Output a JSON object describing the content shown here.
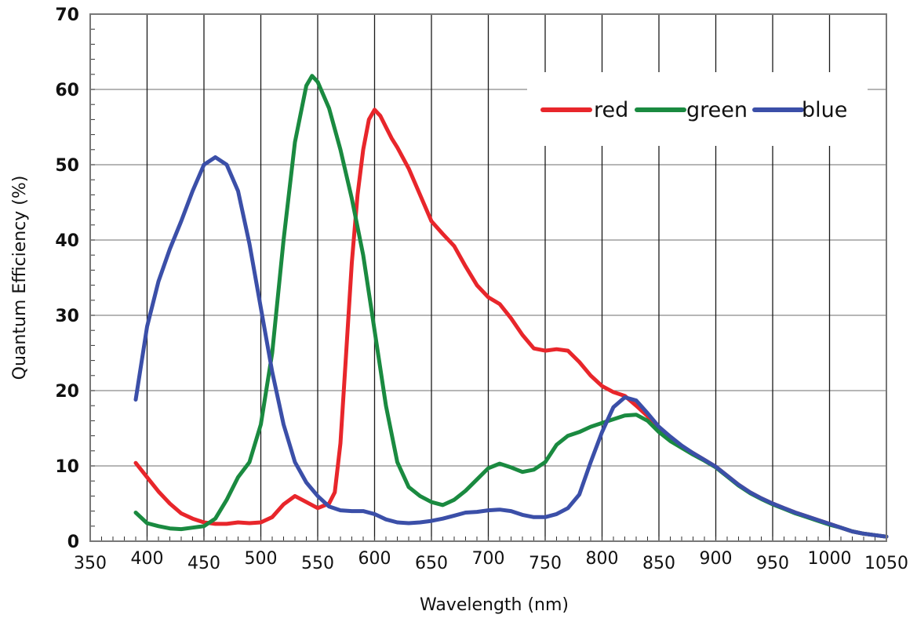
{
  "chart_data": {
    "type": "line",
    "title": "",
    "xlabel": "Wavelength (nm)",
    "ylabel": "Quantum Efficiency (%)",
    "xlim": [
      350,
      1050
    ],
    "ylim": [
      0,
      70
    ],
    "x_ticks": [
      350,
      400,
      450,
      500,
      550,
      600,
      650,
      700,
      750,
      800,
      850,
      900,
      950,
      1000,
      1050
    ],
    "y_ticks": [
      0,
      10,
      20,
      30,
      40,
      50,
      60,
      70
    ],
    "grid": true,
    "legend_position": "top-right",
    "series": [
      {
        "name": "red",
        "color": "#e8262b",
        "points": [
          [
            390,
            10.4
          ],
          [
            400,
            8.5
          ],
          [
            410,
            6.6
          ],
          [
            420,
            5.0
          ],
          [
            430,
            3.7
          ],
          [
            440,
            3.0
          ],
          [
            450,
            2.5
          ],
          [
            460,
            2.3
          ],
          [
            470,
            2.3
          ],
          [
            480,
            2.5
          ],
          [
            490,
            2.4
          ],
          [
            500,
            2.5
          ],
          [
            510,
            3.2
          ],
          [
            520,
            4.9
          ],
          [
            530,
            6.0
          ],
          [
            540,
            5.2
          ],
          [
            550,
            4.4
          ],
          [
            560,
            5.0
          ],
          [
            565,
            6.5
          ],
          [
            570,
            13.0
          ],
          [
            575,
            25.0
          ],
          [
            580,
            37.0
          ],
          [
            585,
            46.0
          ],
          [
            590,
            52.0
          ],
          [
            595,
            56.0
          ],
          [
            600,
            57.3
          ],
          [
            605,
            56.5
          ],
          [
            610,
            55.0
          ],
          [
            615,
            53.5
          ],
          [
            620,
            52.3
          ],
          [
            630,
            49.5
          ],
          [
            640,
            46.0
          ],
          [
            650,
            42.5
          ],
          [
            660,
            40.8
          ],
          [
            670,
            39.2
          ],
          [
            680,
            36.5
          ],
          [
            690,
            34.0
          ],
          [
            700,
            32.4
          ],
          [
            710,
            31.5
          ],
          [
            720,
            29.6
          ],
          [
            730,
            27.4
          ],
          [
            740,
            25.6
          ],
          [
            750,
            25.3
          ],
          [
            760,
            25.5
          ],
          [
            770,
            25.3
          ],
          [
            780,
            23.8
          ],
          [
            790,
            22.0
          ],
          [
            800,
            20.6
          ],
          [
            810,
            19.8
          ],
          [
            820,
            19.3
          ],
          [
            830,
            18.0
          ],
          [
            840,
            16.6
          ],
          [
            850,
            14.8
          ],
          [
            860,
            13.6
          ],
          [
            870,
            12.6
          ],
          [
            880,
            11.7
          ],
          [
            890,
            10.8
          ],
          [
            900,
            9.9
          ],
          [
            910,
            8.7
          ],
          [
            920,
            7.5
          ],
          [
            930,
            6.5
          ],
          [
            940,
            5.7
          ],
          [
            950,
            5.0
          ],
          [
            960,
            4.4
          ],
          [
            970,
            3.8
          ],
          [
            980,
            3.3
          ],
          [
            990,
            2.8
          ],
          [
            1000,
            2.3
          ],
          [
            1010,
            1.8
          ],
          [
            1020,
            1.3
          ],
          [
            1030,
            1.0
          ],
          [
            1040,
            0.8
          ],
          [
            1050,
            0.6
          ]
        ]
      },
      {
        "name": "green",
        "color": "#1a8a40",
        "points": [
          [
            390,
            3.8
          ],
          [
            400,
            2.4
          ],
          [
            410,
            2.0
          ],
          [
            420,
            1.7
          ],
          [
            430,
            1.6
          ],
          [
            440,
            1.8
          ],
          [
            450,
            2.0
          ],
          [
            460,
            3.0
          ],
          [
            470,
            5.5
          ],
          [
            480,
            8.5
          ],
          [
            490,
            10.5
          ],
          [
            500,
            15.5
          ],
          [
            510,
            25.0
          ],
          [
            520,
            40.0
          ],
          [
            530,
            53.0
          ],
          [
            540,
            60.5
          ],
          [
            545,
            61.8
          ],
          [
            550,
            61.0
          ],
          [
            560,
            57.5
          ],
          [
            570,
            52.0
          ],
          [
            580,
            45.5
          ],
          [
            590,
            38.0
          ],
          [
            600,
            28.0
          ],
          [
            610,
            18.0
          ],
          [
            620,
            10.5
          ],
          [
            630,
            7.2
          ],
          [
            640,
            6.0
          ],
          [
            650,
            5.2
          ],
          [
            660,
            4.8
          ],
          [
            670,
            5.5
          ],
          [
            680,
            6.7
          ],
          [
            690,
            8.2
          ],
          [
            700,
            9.7
          ],
          [
            710,
            10.3
          ],
          [
            720,
            9.8
          ],
          [
            730,
            9.2
          ],
          [
            740,
            9.5
          ],
          [
            750,
            10.5
          ],
          [
            760,
            12.8
          ],
          [
            770,
            14.0
          ],
          [
            780,
            14.5
          ],
          [
            790,
            15.2
          ],
          [
            800,
            15.7
          ],
          [
            810,
            16.2
          ],
          [
            820,
            16.7
          ],
          [
            830,
            16.8
          ],
          [
            840,
            16.0
          ],
          [
            850,
            14.5
          ],
          [
            860,
            13.3
          ],
          [
            870,
            12.4
          ],
          [
            880,
            11.5
          ],
          [
            890,
            10.7
          ],
          [
            900,
            9.8
          ],
          [
            910,
            8.6
          ],
          [
            920,
            7.4
          ],
          [
            930,
            6.4
          ],
          [
            940,
            5.6
          ],
          [
            950,
            4.9
          ],
          [
            960,
            4.3
          ],
          [
            970,
            3.7
          ],
          [
            980,
            3.2
          ],
          [
            990,
            2.7
          ],
          [
            1000,
            2.2
          ],
          [
            1010,
            1.8
          ],
          [
            1020,
            1.3
          ],
          [
            1030,
            1.0
          ],
          [
            1040,
            0.8
          ],
          [
            1050,
            0.6
          ]
        ]
      },
      {
        "name": "blue",
        "color": "#3b4fa8",
        "points": [
          [
            390,
            18.8
          ],
          [
            400,
            28.5
          ],
          [
            410,
            34.5
          ],
          [
            420,
            38.8
          ],
          [
            430,
            42.5
          ],
          [
            440,
            46.5
          ],
          [
            450,
            50.0
          ],
          [
            460,
            51.0
          ],
          [
            470,
            50.0
          ],
          [
            480,
            46.5
          ],
          [
            490,
            39.5
          ],
          [
            500,
            31.0
          ],
          [
            510,
            22.5
          ],
          [
            520,
            15.5
          ],
          [
            530,
            10.5
          ],
          [
            540,
            7.8
          ],
          [
            550,
            6.0
          ],
          [
            560,
            4.6
          ],
          [
            570,
            4.1
          ],
          [
            580,
            4.0
          ],
          [
            590,
            4.0
          ],
          [
            600,
            3.6
          ],
          [
            610,
            2.9
          ],
          [
            620,
            2.5
          ],
          [
            630,
            2.4
          ],
          [
            640,
            2.5
          ],
          [
            650,
            2.7
          ],
          [
            660,
            3.0
          ],
          [
            670,
            3.4
          ],
          [
            680,
            3.8
          ],
          [
            690,
            3.9
          ],
          [
            700,
            4.1
          ],
          [
            710,
            4.2
          ],
          [
            720,
            4.0
          ],
          [
            730,
            3.5
          ],
          [
            740,
            3.2
          ],
          [
            750,
            3.2
          ],
          [
            760,
            3.6
          ],
          [
            770,
            4.4
          ],
          [
            780,
            6.2
          ],
          [
            790,
            10.5
          ],
          [
            800,
            14.5
          ],
          [
            810,
            17.8
          ],
          [
            820,
            19.1
          ],
          [
            830,
            18.7
          ],
          [
            840,
            17.0
          ],
          [
            850,
            15.2
          ],
          [
            860,
            13.9
          ],
          [
            870,
            12.7
          ],
          [
            880,
            11.7
          ],
          [
            890,
            10.8
          ],
          [
            900,
            9.9
          ],
          [
            910,
            8.7
          ],
          [
            920,
            7.5
          ],
          [
            930,
            6.5
          ],
          [
            940,
            5.7
          ],
          [
            950,
            5.0
          ],
          [
            960,
            4.4
          ],
          [
            970,
            3.8
          ],
          [
            980,
            3.3
          ],
          [
            990,
            2.8
          ],
          [
            1000,
            2.3
          ],
          [
            1010,
            1.8
          ],
          [
            1020,
            1.3
          ],
          [
            1030,
            1.0
          ],
          [
            1040,
            0.8
          ],
          [
            1050,
            0.6
          ]
        ]
      }
    ]
  }
}
